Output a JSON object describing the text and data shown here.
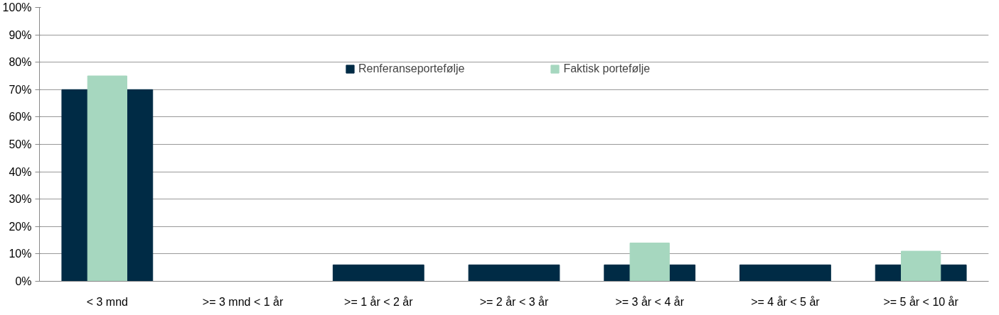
{
  "chart_data": {
    "type": "bar",
    "categories": [
      "< 3 mnd",
      ">= 3 mnd < 1 år",
      ">= 1 år < 2 år",
      ">= 2 år < 3 år",
      ">= 3 år < 4 år",
      ">= 4 år < 5 år",
      ">= 5 år < 10 år"
    ],
    "series": [
      {
        "name": "Renferanseportefølje",
        "color": "#002b45",
        "values": [
          70,
          0,
          6,
          6,
          6,
          6,
          6
        ]
      },
      {
        "name": "Faktisk portefølje",
        "color": "#a6d7bf",
        "values": [
          75,
          0,
          0,
          0,
          14,
          0,
          11
        ]
      }
    ],
    "ylim": [
      0,
      100
    ],
    "yticks": [
      {
        "value": 0,
        "label": "0%"
      },
      {
        "value": 10,
        "label": "10%"
      },
      {
        "value": 20,
        "label": "20%"
      },
      {
        "value": 30,
        "label": "30%"
      },
      {
        "value": 40,
        "label": "40%"
      },
      {
        "value": 50,
        "label": "50%"
      },
      {
        "value": 60,
        "label": "60%"
      },
      {
        "value": 70,
        "label": "70%"
      },
      {
        "value": 80,
        "label": "80%"
      },
      {
        "value": 90,
        "label": "90%"
      },
      {
        "value": 100,
        "label": "100%"
      }
    ],
    "grid": "y",
    "legend": "top"
  }
}
